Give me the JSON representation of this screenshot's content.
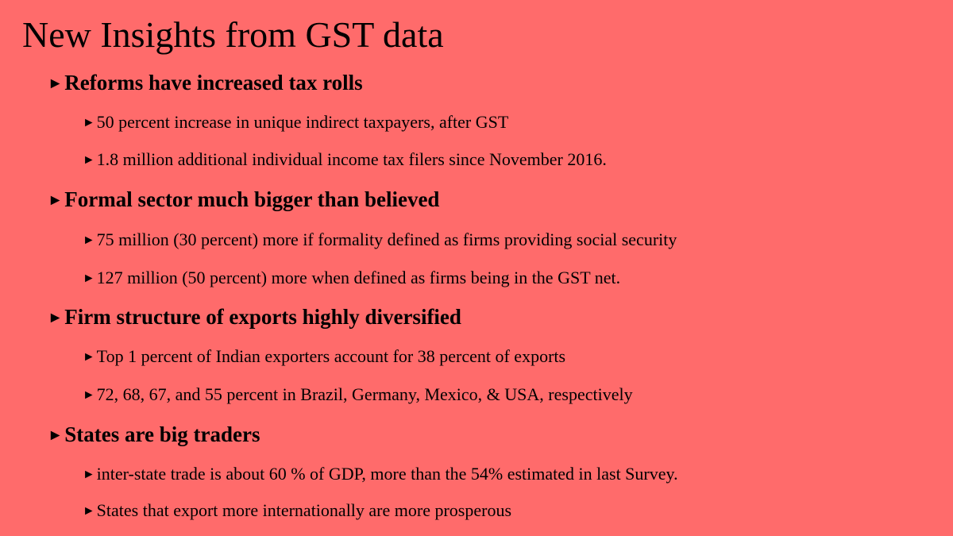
{
  "slide": {
    "title": "New Insights from GST data",
    "bullet_glyph": "►",
    "sections": [
      {
        "heading": "Reforms have increased tax rolls",
        "items": [
          "50 percent increase in unique indirect taxpayers, after GST",
          "1.8 million additional individual income tax filers since November 2016."
        ]
      },
      {
        "heading": "Formal sector much bigger than believed",
        "items": [
          "75 million (30 percent) more if formality defined as firms providing social security",
          "127 million (50 percent) more when defined as firms being in the GST net."
        ]
      },
      {
        "heading": "Firm structure of exports highly diversified",
        "items": [
          "Top 1 percent of Indian exporters account for 38 percent of exports",
          "72, 68, 67, and 55 percent in Brazil, Germany, Mexico, & USA, respectively"
        ]
      },
      {
        "heading": "States are big traders",
        "items": [
          "inter-state trade is about 60 % of GDP, more than the 54% estimated in last Survey.",
          "States that export more internationally are more prosperous"
        ]
      }
    ]
  }
}
